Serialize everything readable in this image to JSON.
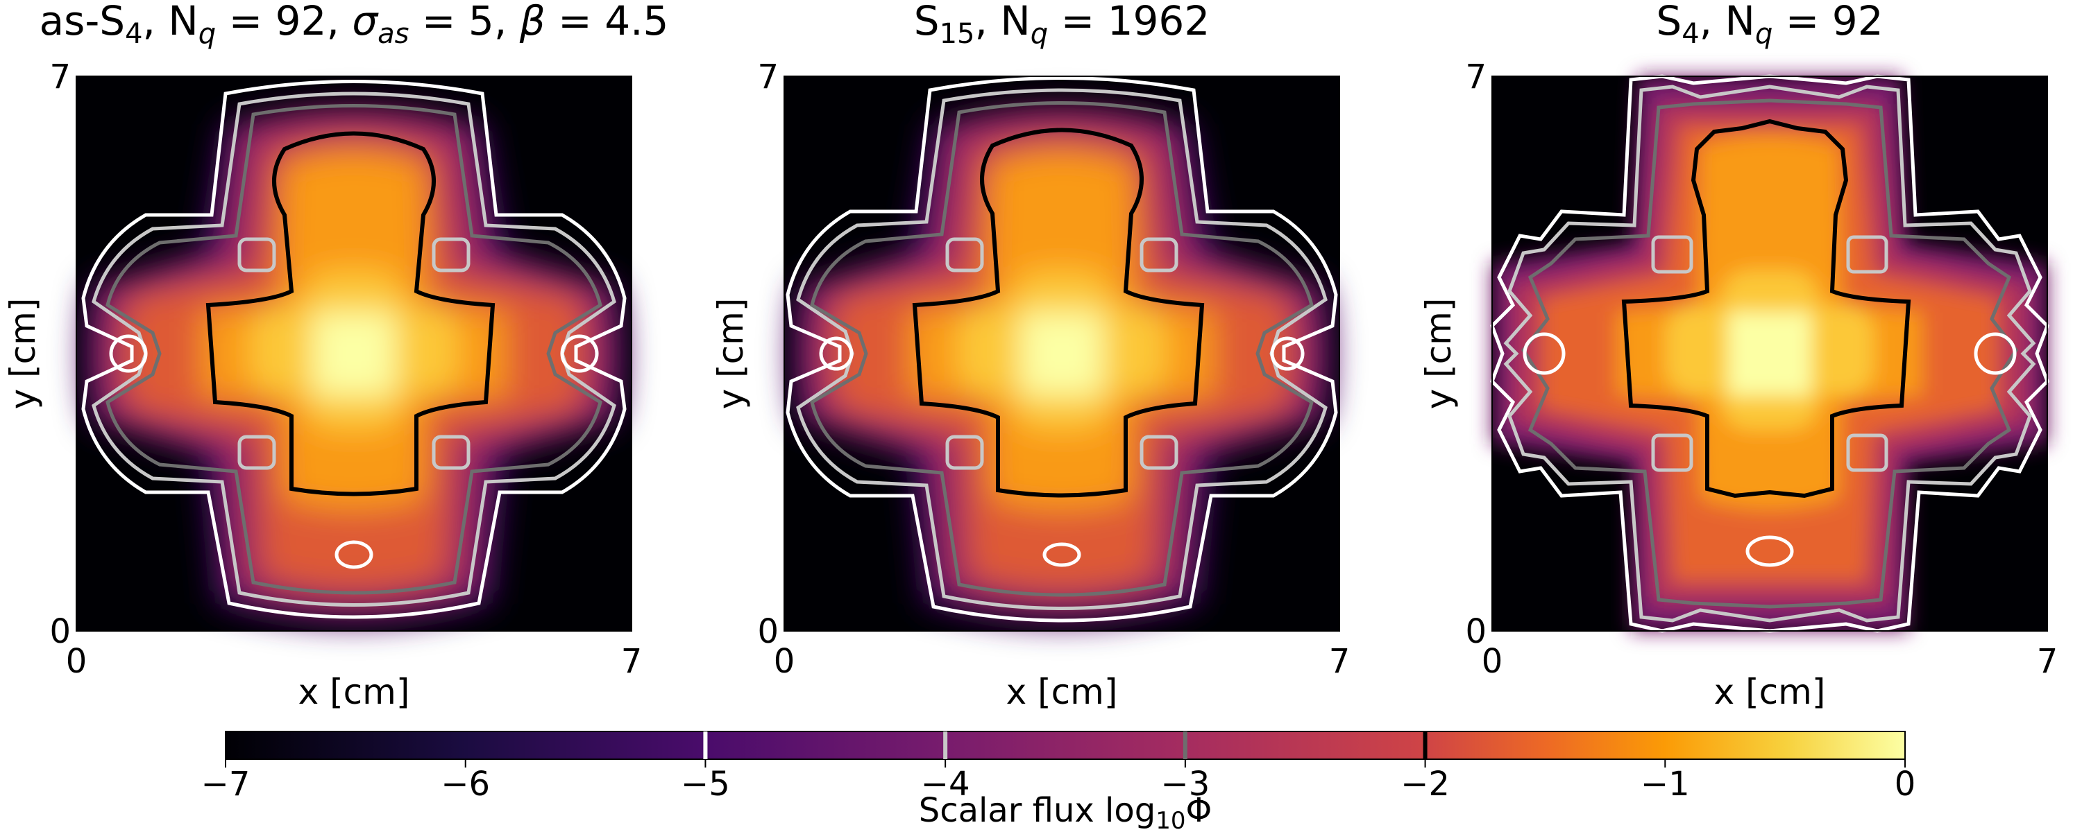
{
  "chart_data": [
    {
      "type": "heatmap",
      "title": "as-S₄, N_q = 92, σ_as = 5, β = 4.5",
      "title_parts": {
        "pre": "as-S",
        "sub1": "4",
        "mid1": ", N",
        "sub2": "q",
        "mid2": " = 92, ",
        "sym1": "σ",
        "sub3": "as",
        "mid3": " = 5, ",
        "sym2": "β",
        "post": " = 4.5"
      },
      "xlabel": "x [cm]",
      "ylabel": "y [cm]",
      "xlim": [
        0,
        7
      ],
      "ylim": [
        0,
        7
      ],
      "xticks": [
        "0",
        "7"
      ],
      "yticks": [
        "0",
        "7"
      ],
      "contour_levels": [
        -5,
        -4,
        -3,
        -2
      ]
    },
    {
      "type": "heatmap",
      "title": "S₁₅, N_q = 1962",
      "title_parts": {
        "pre": "S",
        "sub1": "15",
        "mid1": ", N",
        "sub2": "q",
        "post": " = 1962"
      },
      "xlabel": "x [cm]",
      "ylabel": "y [cm]",
      "xlim": [
        0,
        7
      ],
      "ylim": [
        0,
        7
      ],
      "xticks": [
        "0",
        "7"
      ],
      "yticks": [
        "0",
        "7"
      ],
      "contour_levels": [
        -5,
        -4,
        -3,
        -2
      ]
    },
    {
      "type": "heatmap",
      "title": "S₄, N_q = 92",
      "title_parts": {
        "pre": "S",
        "sub1": "4",
        "mid1": ", N",
        "sub2": "q",
        "post": " = 92"
      },
      "xlabel": "x [cm]",
      "ylabel": "y [cm]",
      "xlim": [
        0,
        7
      ],
      "ylim": [
        0,
        7
      ],
      "xticks": [
        "0",
        "7"
      ],
      "yticks": [
        "0",
        "7"
      ],
      "contour_levels": [
        -5,
        -4,
        -3,
        -2
      ],
      "ray_effects": true
    }
  ],
  "colorbar": {
    "label": "Scalar flux log₁₀Φ",
    "label_parts": {
      "pre": "Scalar flux log",
      "sub": "10",
      "post": "Φ"
    },
    "range": [
      -7,
      0
    ],
    "ticks": [
      "−7",
      "−6",
      "−5",
      "−4",
      "−3",
      "−2",
      "−1",
      "0"
    ],
    "tick_values": [
      -7,
      -6,
      -5,
      -4,
      -3,
      -2,
      -1,
      0
    ],
    "colormap": "inferno",
    "level_lines": [
      {
        "value": -5,
        "color": "#ffffff"
      },
      {
        "value": -4,
        "color": "#c8c8c8"
      },
      {
        "value": -3,
        "color": "#6e6e6e"
      },
      {
        "value": -2,
        "color": "#000000"
      }
    ]
  },
  "colors": {
    "contour_m5": "#ffffff",
    "contour_m4": "#c8c8c8",
    "contour_m3": "#6e6e6e",
    "contour_m2": "#000000",
    "background": "#000004"
  }
}
